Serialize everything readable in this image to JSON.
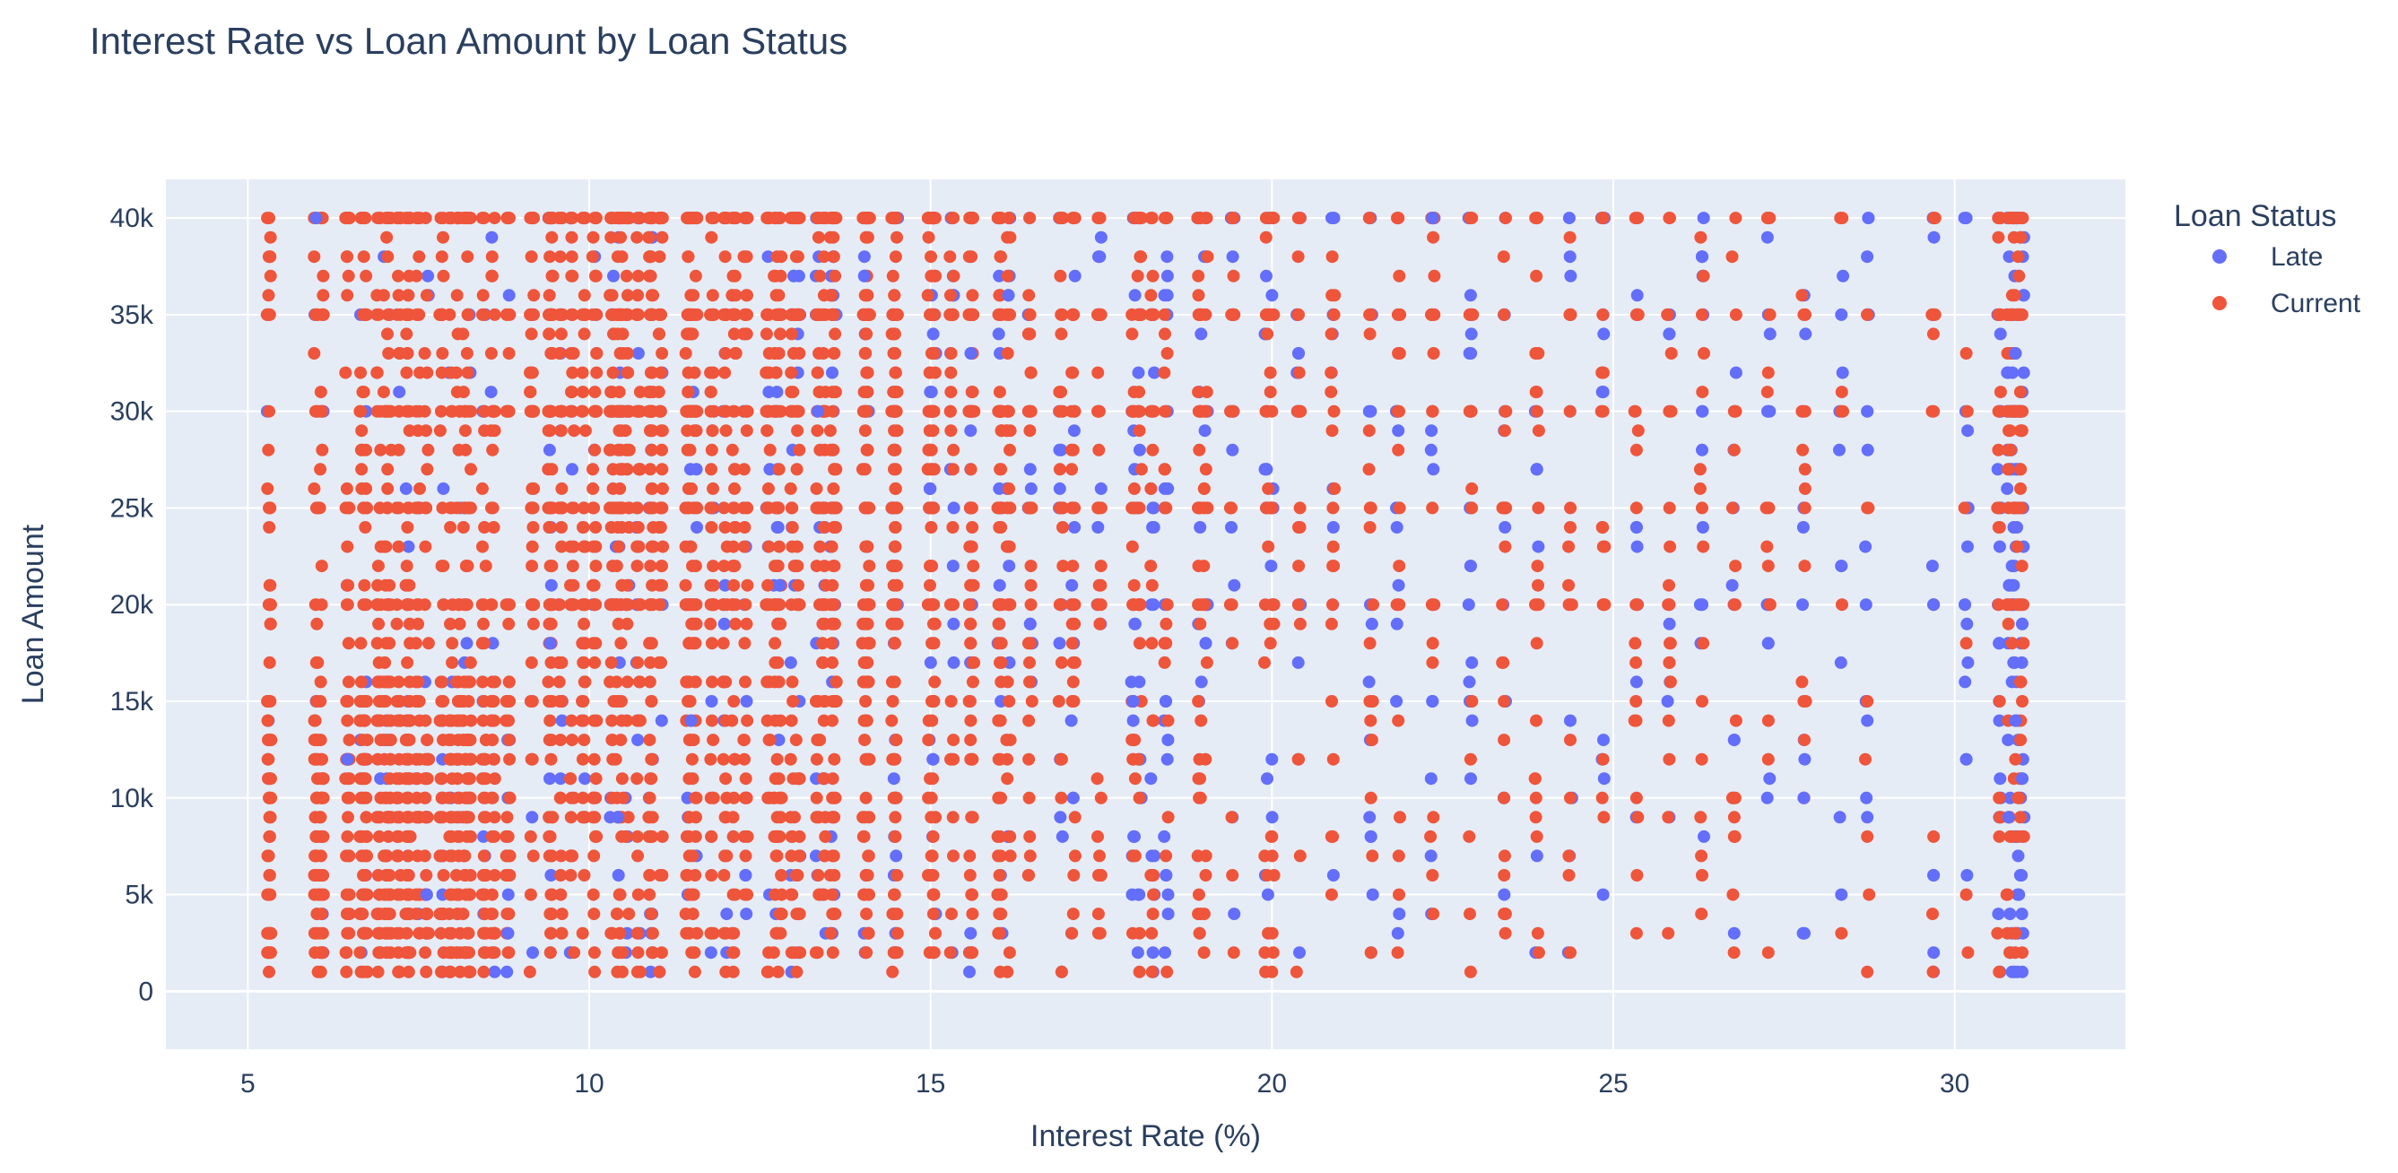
{
  "chart_data": {
    "type": "scatter",
    "title": "Interest Rate vs Loan Amount by Loan Status",
    "xlabel": "Interest Rate (%)",
    "ylabel": "Loan Amount",
    "xlim": [
      3.8,
      32.5
    ],
    "ylim": [
      -3000,
      42000
    ],
    "x_ticks": [
      5,
      10,
      15,
      20,
      25,
      30
    ],
    "x_tick_labels": [
      "5",
      "10",
      "15",
      "20",
      "25",
      "30"
    ],
    "y_ticks": [
      0,
      5000,
      10000,
      15000,
      20000,
      25000,
      30000,
      35000,
      40000
    ],
    "y_tick_labels": [
      "0",
      "5k",
      "10k",
      "15k",
      "20k",
      "25k",
      "30k",
      "35k",
      "40k"
    ],
    "grid": true,
    "legend": {
      "title": "Loan Status",
      "position": "top-right"
    },
    "colors": {
      "plot_bg": "#e5ecf6",
      "grid": "#ffffff",
      "Late": "#636efa",
      "Current": "#ef553b"
    },
    "rate_columns": [
      5.31,
      6.0,
      6.08,
      6.46,
      6.67,
      6.72,
      6.92,
      7.02,
      7.07,
      7.21,
      7.34,
      7.35,
      7.49,
      7.62,
      7.84,
      7.97,
      8.08,
      8.18,
      8.24,
      8.46,
      8.59,
      8.81,
      9.16,
      9.43,
      9.44,
      9.58,
      9.75,
      9.92,
      10.08,
      10.33,
      10.42,
      10.47,
      10.56,
      10.72,
      10.9,
      10.91,
      11.05,
      11.44,
      11.49,
      11.55,
      11.8,
      11.99,
      12.12,
      12.29,
      12.62,
      12.73,
      12.79,
      12.98,
      13.06,
      13.35,
      13.44,
      13.56,
      13.59,
      14.03,
      14.07,
      14.08,
      14.46,
      14.47,
      14.49,
      14.99,
      15.02,
      15.05,
      15.31,
      15.59,
      15.61,
      16.01,
      16.02,
      16.14,
      16.46,
      16.91,
      17.09,
      17.47,
      17.97,
      18.06,
      18.25,
      18.45,
      18.94,
      19.03,
      19.42,
      19.92,
      20.0,
      20.39,
      20.89,
      21.45,
      21.85,
      22.35,
      22.91,
      23.4,
      23.88,
      24.37,
      24.85,
      25.34,
      25.82,
      26.3,
      26.77,
      27.27,
      27.79,
      28.34,
      28.72,
      29.69,
      30.17,
      30.65,
      30.79,
      30.84,
      30.89,
      30.94,
      30.99
    ],
    "series": [
      {
        "name": "Late",
        "points": [
          [
            6.0,
            40000
          ],
          [
            6.0,
            15000
          ],
          [
            6.46,
            12000
          ],
          [
            7.07,
            20000
          ],
          [
            7.62,
            5000
          ],
          [
            8.18,
            25000
          ],
          [
            8.81,
            3000
          ],
          [
            9.16,
            35000
          ],
          [
            9.43,
            18000
          ],
          [
            9.92,
            40000
          ],
          [
            10.42,
            9000
          ],
          [
            10.91,
            28000
          ],
          [
            11.49,
            14000
          ],
          [
            11.99,
            33000
          ],
          [
            12.29,
            6000
          ],
          [
            12.62,
            38000
          ],
          [
            12.79,
            21000
          ],
          [
            13.06,
            2000
          ],
          [
            13.35,
            30000
          ],
          [
            13.56,
            16000
          ],
          [
            14.03,
            37000
          ],
          [
            14.47,
            8000
          ],
          [
            14.99,
            26000
          ],
          [
            15.31,
            12000
          ],
          [
            15.59,
            33000
          ],
          [
            16.01,
            4000
          ],
          [
            16.46,
            19000
          ],
          [
            16.91,
            28000
          ],
          [
            17.09,
            10000
          ],
          [
            17.47,
            35000
          ],
          [
            17.97,
            15000
          ],
          [
            18.25,
            24000
          ],
          [
            18.45,
            6000
          ],
          [
            18.94,
            31000
          ],
          [
            19.03,
            18000
          ],
          [
            19.42,
            9000
          ],
          [
            19.92,
            27000
          ],
          [
            20.0,
            12000
          ],
          [
            20.39,
            33000
          ],
          [
            20.89,
            20000
          ],
          [
            21.45,
            8000
          ],
          [
            21.85,
            29000
          ],
          [
            22.35,
            15000
          ],
          [
            22.91,
            36000
          ],
          [
            22.91,
            22000
          ],
          [
            23.4,
            10000
          ],
          [
            23.88,
            27000
          ],
          [
            24.37,
            14000
          ],
          [
            24.85,
            31000
          ],
          [
            24.85,
            5000
          ],
          [
            25.34,
            24000
          ],
          [
            25.34,
            16000
          ],
          [
            25.82,
            34000
          ],
          [
            25.82,
            9000
          ],
          [
            26.3,
            20000
          ],
          [
            26.3,
            28000
          ],
          [
            26.77,
            13000
          ],
          [
            26.77,
            3000
          ],
          [
            27.27,
            18000
          ],
          [
            27.27,
            35000
          ],
          [
            27.79,
            10000
          ],
          [
            27.79,
            25000
          ],
          [
            28.34,
            22000
          ],
          [
            28.34,
            5000
          ],
          [
            28.72,
            30000
          ],
          [
            28.72,
            14000
          ],
          [
            29.69,
            20000
          ],
          [
            29.69,
            35000
          ],
          [
            29.69,
            6000
          ],
          [
            30.17,
            25000
          ],
          [
            30.17,
            12000
          ],
          [
            30.17,
            40000
          ],
          [
            30.65,
            18000
          ],
          [
            30.65,
            30000
          ],
          [
            30.79,
            9000
          ],
          [
            30.84,
            22000
          ],
          [
            30.89,
            14000
          ],
          [
            30.94,
            27000
          ],
          [
            30.99,
            11000
          ],
          [
            30.99,
            40000
          ],
          [
            30.99,
            19000
          ],
          [
            30.94,
            5000
          ],
          [
            30.89,
            33000
          ],
          [
            30.84,
            1000
          ],
          [
            22.35,
            40000
          ],
          [
            24.85,
            35000
          ],
          [
            26.3,
            38000
          ],
          [
            12.12,
            40000
          ],
          [
            16.14,
            36000
          ],
          [
            29.69,
            1000
          ]
        ]
      },
      {
        "name": "Current",
        "points": [
          [
            5.31,
            40000
          ],
          [
            5.31,
            35000
          ],
          [
            5.31,
            30000
          ],
          [
            5.31,
            25000
          ],
          [
            5.31,
            20000
          ],
          [
            5.31,
            15000
          ],
          [
            5.31,
            10000
          ],
          [
            5.31,
            5000
          ],
          [
            5.31,
            1000
          ],
          [
            6.08,
            40000
          ],
          [
            6.08,
            30000
          ],
          [
            6.08,
            20000
          ],
          [
            6.08,
            10000
          ],
          [
            6.08,
            2000
          ],
          [
            6.72,
            35000
          ],
          [
            6.72,
            24000
          ],
          [
            6.72,
            12000
          ],
          [
            6.72,
            6000
          ],
          [
            7.21,
            40000
          ],
          [
            7.21,
            28000
          ],
          [
            7.21,
            16000
          ],
          [
            7.21,
            8000
          ],
          [
            7.21,
            1000
          ],
          [
            7.84,
            35000
          ],
          [
            7.84,
            22000
          ],
          [
            7.84,
            10000
          ],
          [
            7.84,
            4000
          ],
          [
            8.46,
            40000
          ],
          [
            8.46,
            30000
          ],
          [
            8.46,
            18000
          ],
          [
            8.46,
            7000
          ],
          [
            9.44,
            35000
          ],
          [
            9.44,
            25000
          ],
          [
            9.44,
            12000
          ],
          [
            9.44,
            3000
          ],
          [
            10.08,
            40000
          ],
          [
            10.08,
            30000
          ],
          [
            10.08,
            20000
          ],
          [
            10.08,
            10000
          ],
          [
            10.08,
            1000
          ],
          [
            10.72,
            35000
          ],
          [
            10.72,
            24000
          ],
          [
            10.72,
            14000
          ],
          [
            10.72,
            5000
          ],
          [
            11.44,
            40000
          ],
          [
            11.44,
            28000
          ],
          [
            11.44,
            16000
          ],
          [
            11.44,
            6000
          ],
          [
            12.12,
            35000
          ],
          [
            12.12,
            22000
          ],
          [
            12.12,
            10000
          ],
          [
            12.12,
            2000
          ],
          [
            12.73,
            40000
          ],
          [
            12.73,
            30000
          ],
          [
            12.73,
            20000
          ],
          [
            12.73,
            8000
          ],
          [
            13.44,
            35000
          ],
          [
            13.44,
            25000
          ],
          [
            13.44,
            15000
          ],
          [
            13.44,
            5000
          ],
          [
            14.08,
            40000
          ],
          [
            14.08,
            28000
          ],
          [
            14.08,
            18000
          ],
          [
            14.08,
            6000
          ],
          [
            14.49,
            35000
          ],
          [
            14.49,
            20000
          ],
          [
            14.49,
            10000
          ],
          [
            15.05,
            40000
          ],
          [
            15.05,
            30000
          ],
          [
            15.05,
            18000
          ],
          [
            15.05,
            5000
          ],
          [
            15.61,
            35000
          ],
          [
            15.61,
            24000
          ],
          [
            15.61,
            12000
          ],
          [
            15.61,
            2000
          ],
          [
            16.02,
            40000
          ],
          [
            16.02,
            30000
          ],
          [
            16.02,
            20000
          ],
          [
            16.02,
            8000
          ],
          [
            16.02,
            1000
          ],
          [
            17.09,
            40000
          ],
          [
            17.09,
            28000
          ],
          [
            17.09,
            16000
          ],
          [
            17.09,
            4000
          ],
          [
            18.06,
            40000
          ],
          [
            18.06,
            30000
          ],
          [
            18.06,
            20000
          ],
          [
            18.06,
            10000
          ],
          [
            18.06,
            1000
          ],
          [
            18.94,
            35000
          ],
          [
            18.94,
            25000
          ],
          [
            18.94,
            12000
          ],
          [
            18.94,
            3000
          ],
          [
            19.42,
            40000
          ],
          [
            19.42,
            30000
          ],
          [
            19.42,
            18000
          ],
          [
            19.42,
            6000
          ],
          [
            20.0,
            40000
          ],
          [
            20.0,
            30000
          ],
          [
            20.0,
            20000
          ],
          [
            20.0,
            8000
          ],
          [
            20.0,
            1000
          ],
          [
            20.39,
            35000
          ],
          [
            20.39,
            24000
          ],
          [
            20.39,
            12000
          ],
          [
            21.45,
            35000
          ],
          [
            21.45,
            25000
          ],
          [
            21.45,
            10000
          ],
          [
            21.45,
            2000
          ],
          [
            21.85,
            40000
          ],
          [
            21.85,
            28000
          ],
          [
            21.85,
            14000
          ],
          [
            22.35,
            35000
          ],
          [
            22.35,
            20000
          ],
          [
            22.35,
            6000
          ],
          [
            22.91,
            30000
          ],
          [
            22.91,
            12000
          ],
          [
            22.91,
            1000
          ],
          [
            23.4,
            35000
          ],
          [
            23.4,
            25000
          ],
          [
            23.4,
            15000
          ],
          [
            23.4,
            4000
          ],
          [
            23.88,
            40000
          ],
          [
            23.88,
            30000
          ],
          [
            23.88,
            18000
          ],
          [
            23.88,
            8000
          ],
          [
            24.37,
            35000
          ],
          [
            24.37,
            24000
          ],
          [
            24.37,
            10000
          ],
          [
            24.37,
            2000
          ],
          [
            24.85,
            40000
          ],
          [
            24.85,
            30000
          ],
          [
            24.85,
            20000
          ],
          [
            24.85,
            12000
          ],
          [
            25.34,
            35000
          ],
          [
            25.34,
            28000
          ],
          [
            25.34,
            10000
          ],
          [
            25.34,
            3000
          ],
          [
            25.82,
            40000
          ],
          [
            25.82,
            30000
          ],
          [
            25.82,
            20000
          ],
          [
            25.82,
            12000
          ],
          [
            26.3,
            35000
          ],
          [
            26.3,
            25000
          ],
          [
            26.3,
            15000
          ],
          [
            26.3,
            6000
          ],
          [
            26.77,
            30000
          ],
          [
            26.77,
            20000
          ],
          [
            26.77,
            8000
          ],
          [
            27.27,
            32000
          ],
          [
            27.27,
            22000
          ],
          [
            27.27,
            12000
          ],
          [
            27.27,
            2000
          ],
          [
            27.79,
            35000
          ],
          [
            27.79,
            15000
          ],
          [
            28.72,
            35000
          ],
          [
            28.72,
            25000
          ],
          [
            28.72,
            15000
          ],
          [
            28.72,
            8000
          ],
          [
            28.72,
            1000
          ],
          [
            29.69,
            30000
          ],
          [
            29.69,
            20000
          ],
          [
            29.69,
            8000
          ],
          [
            30.17,
            33000
          ],
          [
            30.17,
            18000
          ],
          [
            30.17,
            5000
          ],
          [
            30.65,
            40000
          ],
          [
            30.65,
            35000
          ],
          [
            30.65,
            25000
          ],
          [
            30.65,
            10000
          ],
          [
            30.65,
            1000
          ],
          [
            30.79,
            35000
          ],
          [
            30.79,
            28000
          ],
          [
            30.84,
            30000
          ],
          [
            30.84,
            18000
          ],
          [
            30.84,
            8000
          ],
          [
            30.89,
            25000
          ],
          [
            30.89,
            12000
          ],
          [
            30.89,
            3000
          ],
          [
            30.94,
            35000
          ],
          [
            30.94,
            20000
          ],
          [
            30.94,
            10000
          ],
          [
            30.99,
            30000
          ],
          [
            30.99,
            15000
          ],
          [
            30.99,
            2000
          ]
        ]
      }
    ]
  }
}
